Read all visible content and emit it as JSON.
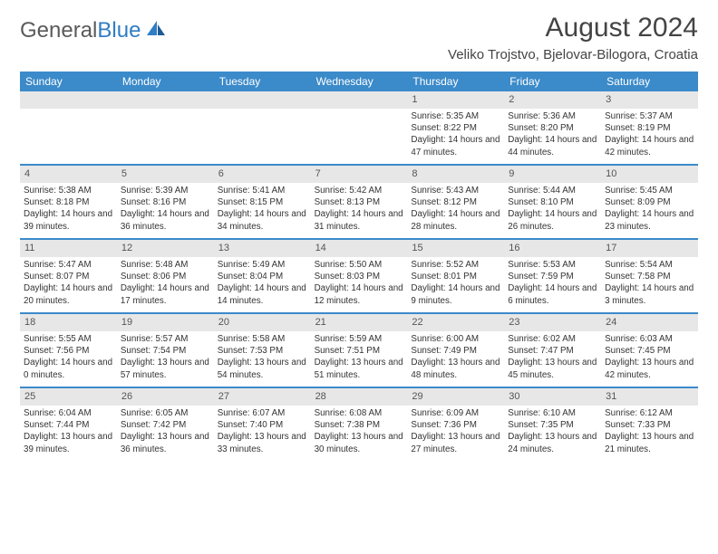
{
  "brand": {
    "name_gray": "General",
    "name_blue": "Blue"
  },
  "title": "August 2024",
  "location": "Veliko Trojstvo, Bjelovar-Bilogora, Croatia",
  "colors": {
    "header_bg": "#3b8ac9",
    "header_text": "#ffffff",
    "daynum_bg": "#e7e7e7",
    "text": "#333333",
    "divider": "#3b8ac9",
    "brand_gray": "#5a5a5a",
    "brand_blue": "#2f7dc4"
  },
  "weekdays": [
    "Sunday",
    "Monday",
    "Tuesday",
    "Wednesday",
    "Thursday",
    "Friday",
    "Saturday"
  ],
  "weeks": [
    [
      null,
      null,
      null,
      null,
      {
        "n": "1",
        "sr": "5:35 AM",
        "ss": "8:22 PM",
        "dl": "14 hours and 47 minutes."
      },
      {
        "n": "2",
        "sr": "5:36 AM",
        "ss": "8:20 PM",
        "dl": "14 hours and 44 minutes."
      },
      {
        "n": "3",
        "sr": "5:37 AM",
        "ss": "8:19 PM",
        "dl": "14 hours and 42 minutes."
      }
    ],
    [
      {
        "n": "4",
        "sr": "5:38 AM",
        "ss": "8:18 PM",
        "dl": "14 hours and 39 minutes."
      },
      {
        "n": "5",
        "sr": "5:39 AM",
        "ss": "8:16 PM",
        "dl": "14 hours and 36 minutes."
      },
      {
        "n": "6",
        "sr": "5:41 AM",
        "ss": "8:15 PM",
        "dl": "14 hours and 34 minutes."
      },
      {
        "n": "7",
        "sr": "5:42 AM",
        "ss": "8:13 PM",
        "dl": "14 hours and 31 minutes."
      },
      {
        "n": "8",
        "sr": "5:43 AM",
        "ss": "8:12 PM",
        "dl": "14 hours and 28 minutes."
      },
      {
        "n": "9",
        "sr": "5:44 AM",
        "ss": "8:10 PM",
        "dl": "14 hours and 26 minutes."
      },
      {
        "n": "10",
        "sr": "5:45 AM",
        "ss": "8:09 PM",
        "dl": "14 hours and 23 minutes."
      }
    ],
    [
      {
        "n": "11",
        "sr": "5:47 AM",
        "ss": "8:07 PM",
        "dl": "14 hours and 20 minutes."
      },
      {
        "n": "12",
        "sr": "5:48 AM",
        "ss": "8:06 PM",
        "dl": "14 hours and 17 minutes."
      },
      {
        "n": "13",
        "sr": "5:49 AM",
        "ss": "8:04 PM",
        "dl": "14 hours and 14 minutes."
      },
      {
        "n": "14",
        "sr": "5:50 AM",
        "ss": "8:03 PM",
        "dl": "14 hours and 12 minutes."
      },
      {
        "n": "15",
        "sr": "5:52 AM",
        "ss": "8:01 PM",
        "dl": "14 hours and 9 minutes."
      },
      {
        "n": "16",
        "sr": "5:53 AM",
        "ss": "7:59 PM",
        "dl": "14 hours and 6 minutes."
      },
      {
        "n": "17",
        "sr": "5:54 AM",
        "ss": "7:58 PM",
        "dl": "14 hours and 3 minutes."
      }
    ],
    [
      {
        "n": "18",
        "sr": "5:55 AM",
        "ss": "7:56 PM",
        "dl": "14 hours and 0 minutes."
      },
      {
        "n": "19",
        "sr": "5:57 AM",
        "ss": "7:54 PM",
        "dl": "13 hours and 57 minutes."
      },
      {
        "n": "20",
        "sr": "5:58 AM",
        "ss": "7:53 PM",
        "dl": "13 hours and 54 minutes."
      },
      {
        "n": "21",
        "sr": "5:59 AM",
        "ss": "7:51 PM",
        "dl": "13 hours and 51 minutes."
      },
      {
        "n": "22",
        "sr": "6:00 AM",
        "ss": "7:49 PM",
        "dl": "13 hours and 48 minutes."
      },
      {
        "n": "23",
        "sr": "6:02 AM",
        "ss": "7:47 PM",
        "dl": "13 hours and 45 minutes."
      },
      {
        "n": "24",
        "sr": "6:03 AM",
        "ss": "7:45 PM",
        "dl": "13 hours and 42 minutes."
      }
    ],
    [
      {
        "n": "25",
        "sr": "6:04 AM",
        "ss": "7:44 PM",
        "dl": "13 hours and 39 minutes."
      },
      {
        "n": "26",
        "sr": "6:05 AM",
        "ss": "7:42 PM",
        "dl": "13 hours and 36 minutes."
      },
      {
        "n": "27",
        "sr": "6:07 AM",
        "ss": "7:40 PM",
        "dl": "13 hours and 33 minutes."
      },
      {
        "n": "28",
        "sr": "6:08 AM",
        "ss": "7:38 PM",
        "dl": "13 hours and 30 minutes."
      },
      {
        "n": "29",
        "sr": "6:09 AM",
        "ss": "7:36 PM",
        "dl": "13 hours and 27 minutes."
      },
      {
        "n": "30",
        "sr": "6:10 AM",
        "ss": "7:35 PM",
        "dl": "13 hours and 24 minutes."
      },
      {
        "n": "31",
        "sr": "6:12 AM",
        "ss": "7:33 PM",
        "dl": "13 hours and 21 minutes."
      }
    ]
  ],
  "labels": {
    "sunrise": "Sunrise:",
    "sunset": "Sunset:",
    "daylight": "Daylight:"
  }
}
